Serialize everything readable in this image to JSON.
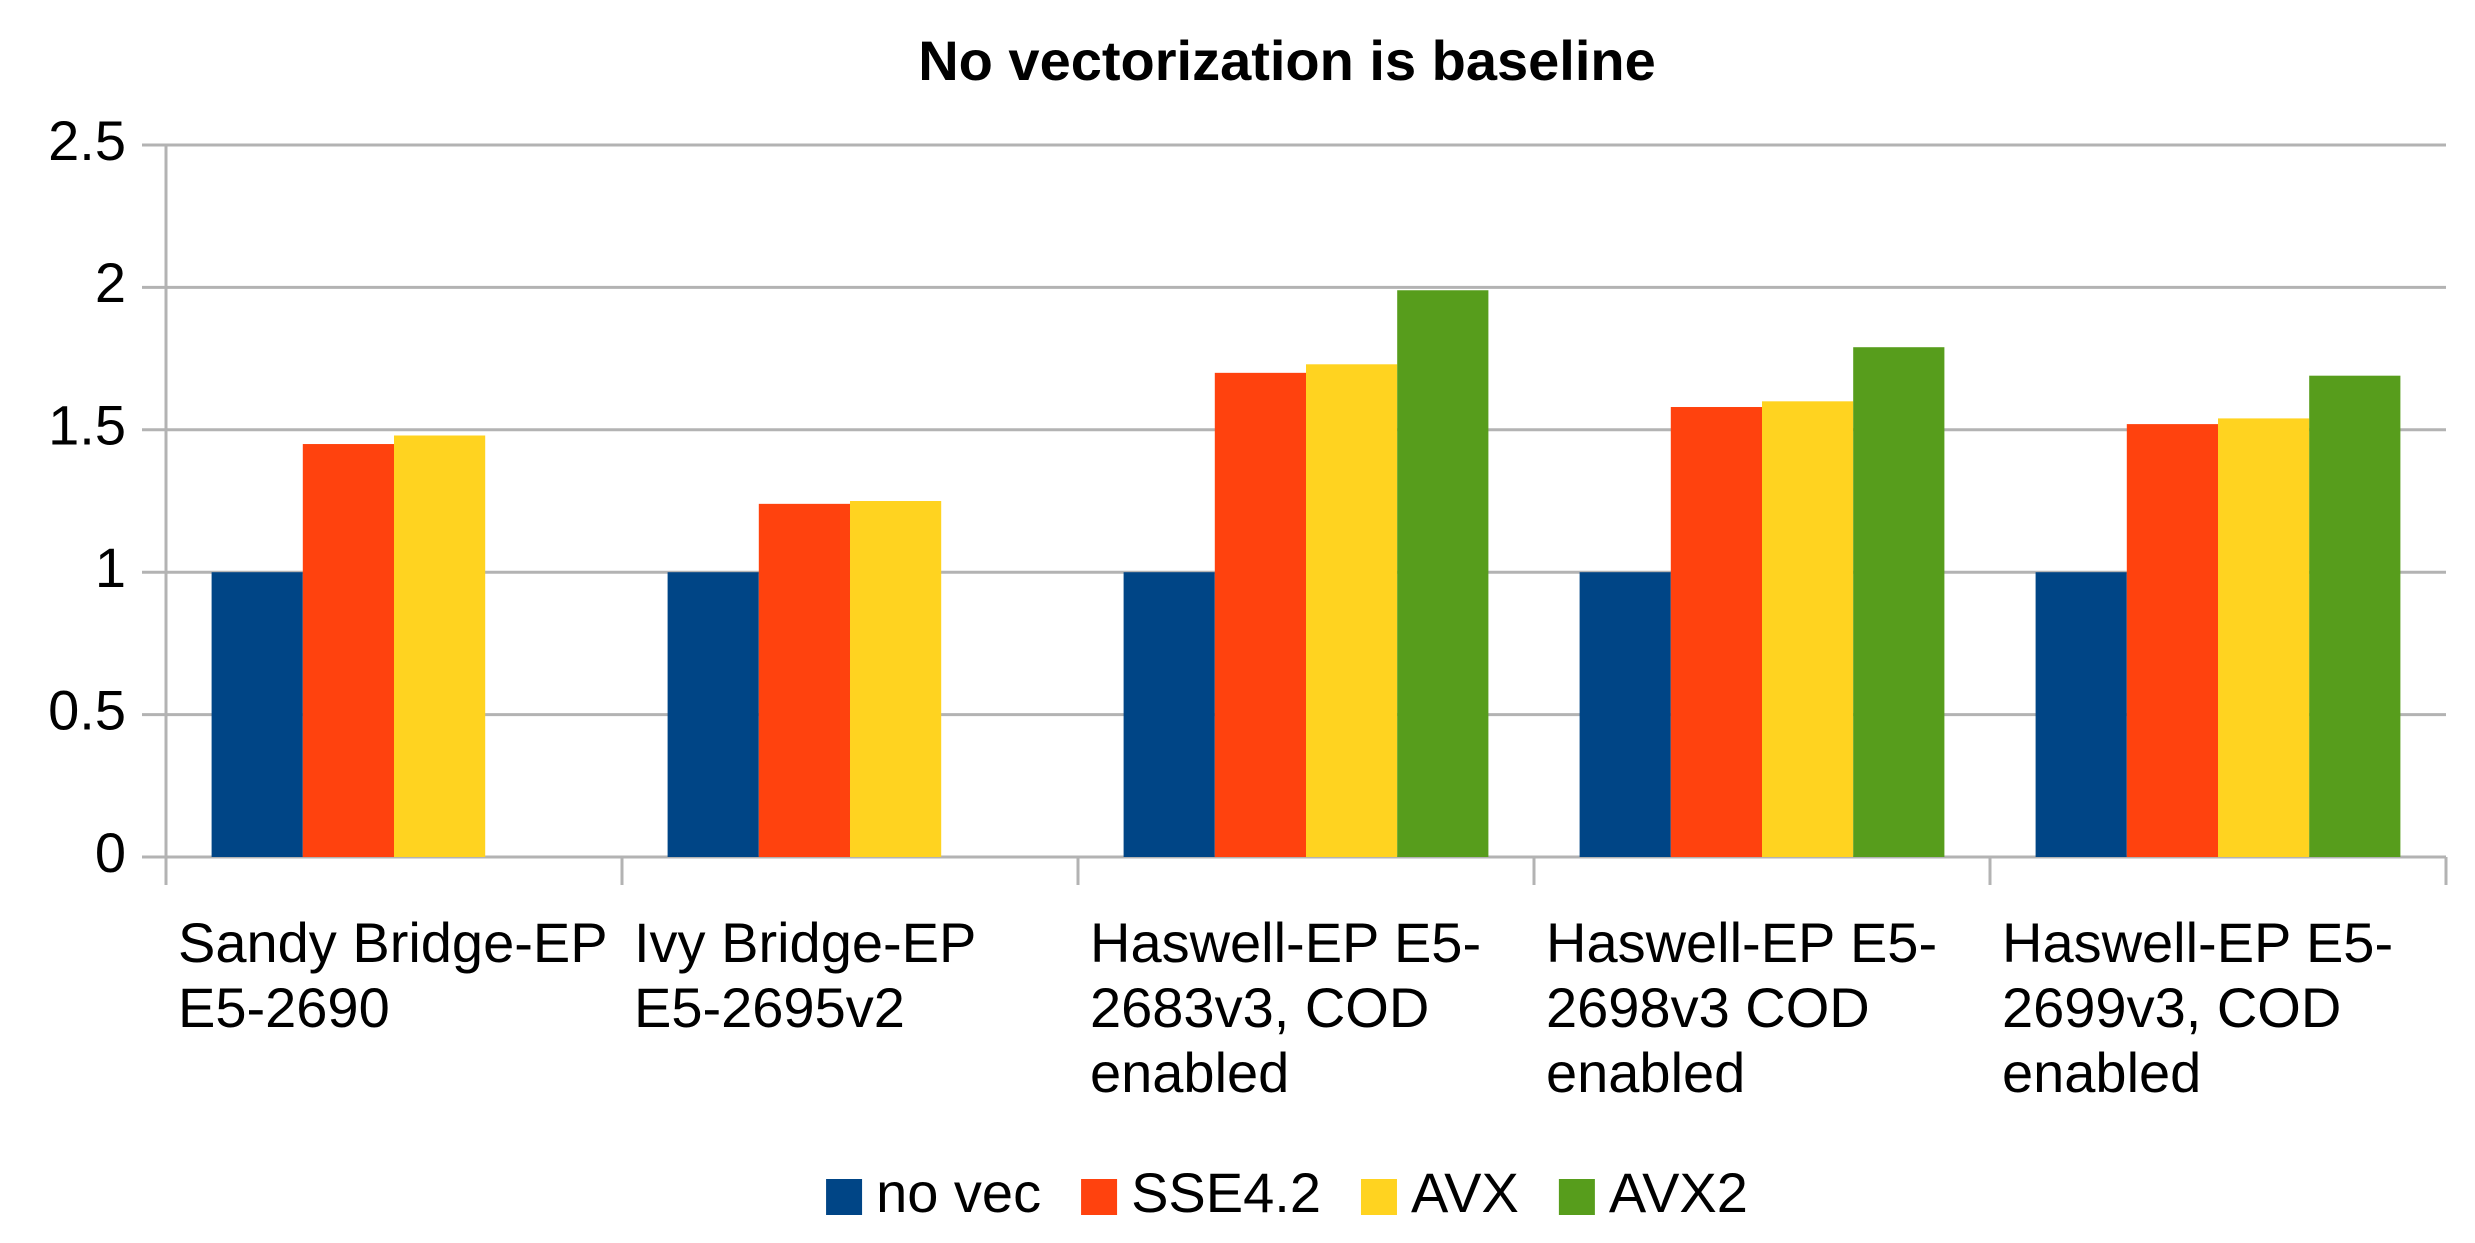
{
  "chart_data": {
    "type": "bar",
    "subtitle": "No vectorization is baseline",
    "categories": [
      "Sandy Bridge-EP E5-2690",
      "Ivy Bridge-EP E5-2695v2",
      "Haswell-EP E5-2683v3, COD enabled",
      "Haswell-EP E5-2698v3 COD enabled",
      "Haswell-EP E5-2699v3, COD enabled"
    ],
    "series": [
      {
        "name": "no vec",
        "color": "#004586",
        "values": [
          1,
          1,
          1,
          1,
          1
        ]
      },
      {
        "name": "SSE4.2",
        "color": "#ff420e",
        "values": [
          1.45,
          1.24,
          1.7,
          1.58,
          1.52
        ]
      },
      {
        "name": "AVX",
        "color": "#ffd320",
        "values": [
          1.48,
          1.25,
          1.73,
          1.6,
          1.54
        ]
      },
      {
        "name": "AVX2",
        "color": "#579d1c",
        "values": [
          null,
          null,
          1.99,
          1.79,
          1.69
        ]
      }
    ],
    "ylim": [
      0,
      2.5
    ],
    "yticks": [
      0,
      0.5,
      1,
      1.5,
      2,
      2.5
    ],
    "grid": true,
    "legend": "bottom"
  }
}
